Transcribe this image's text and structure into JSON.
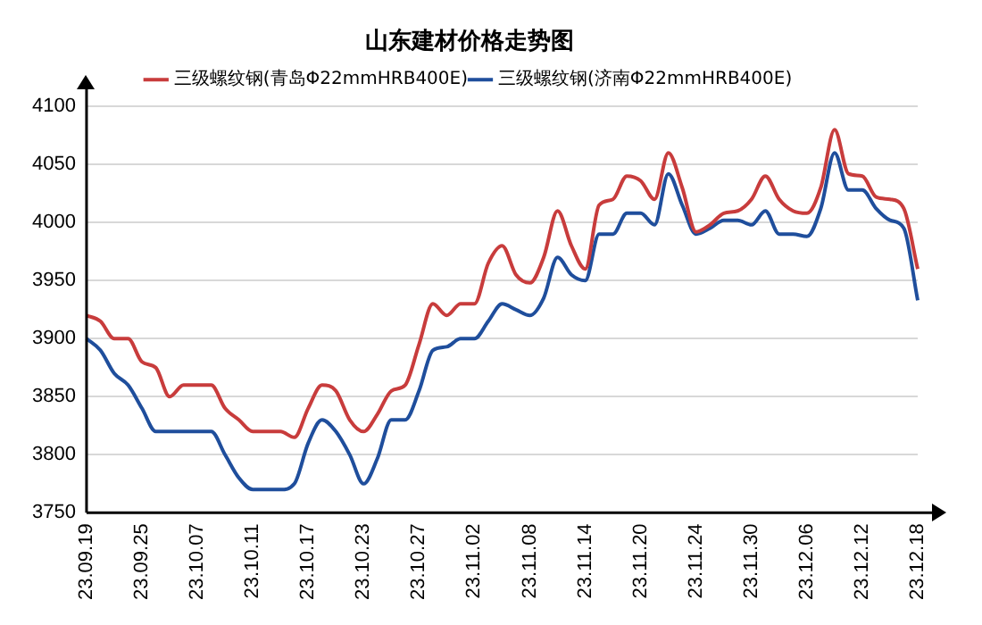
{
  "chart_data": {
    "type": "line",
    "title": "山东建材价格走势图",
    "categories": [
      "23.09.19",
      null,
      null,
      null,
      "23.09.25",
      null,
      null,
      null,
      "23.10.07",
      null,
      null,
      null,
      "23.10.11",
      null,
      null,
      null,
      "23.10.17",
      null,
      null,
      null,
      "23.10.23",
      null,
      null,
      null,
      "23.10.27",
      null,
      null,
      null,
      "23.11.02",
      null,
      null,
      null,
      "23.11.08",
      null,
      null,
      null,
      "23.11.14",
      null,
      null,
      null,
      "23.11.20",
      null,
      null,
      null,
      "23.11.24",
      null,
      null,
      null,
      "23.11.30",
      null,
      null,
      null,
      "23.12.06",
      null,
      null,
      null,
      "23.12.12",
      null,
      null,
      null,
      "23.12.18"
    ],
    "series": [
      {
        "name": "三级螺纹钢(青岛Φ22mmHRB400E)",
        "color": "#c83c3c",
        "values": [
          3920,
          3915,
          3900,
          3900,
          3880,
          3875,
          3850,
          3860,
          3860,
          3860,
          3840,
          3830,
          3820,
          3820,
          3820,
          3815,
          3840,
          3860,
          3855,
          3830,
          3820,
          3835,
          3855,
          3860,
          3895,
          3930,
          3920,
          3930,
          3930,
          3965,
          3980,
          3955,
          3948,
          3970,
          4010,
          3980,
          3960,
          4015,
          4020,
          4040,
          4036,
          4020,
          4060,
          4030,
          3992,
          3998,
          4008,
          4010,
          4020,
          4040,
          4020,
          4010,
          4008,
          4030,
          4080,
          4042,
          4040,
          4022,
          4020,
          4012,
          3960
        ]
      },
      {
        "name": "三级螺纹钢(济南Φ22mmHRB400E)",
        "color": "#1f4e9c",
        "values": [
          3900,
          3890,
          3870,
          3860,
          3840,
          3820,
          3820,
          3820,
          3820,
          3820,
          3800,
          3780,
          3770,
          3770,
          3770,
          3775,
          3810,
          3830,
          3820,
          3800,
          3775,
          3797,
          3830,
          3830,
          3855,
          3890,
          3893,
          3900,
          3900,
          3915,
          3930,
          3925,
          3920,
          3935,
          3970,
          3955,
          3950,
          3990,
          3990,
          4008,
          4008,
          3998,
          4042,
          4015,
          3990,
          3995,
          4002,
          4002,
          3998,
          4010,
          3990,
          3990,
          3988,
          4012,
          4060,
          4028,
          4028,
          4012,
          4002,
          3995,
          3933
        ]
      }
    ],
    "ylim": [
      3750,
      4100
    ],
    "yticks": [
      3750,
      3800,
      3850,
      3900,
      3950,
      4000,
      4050,
      4100
    ],
    "grid": "y",
    "legend": "top",
    "marker": "none",
    "line_style": "solid"
  }
}
